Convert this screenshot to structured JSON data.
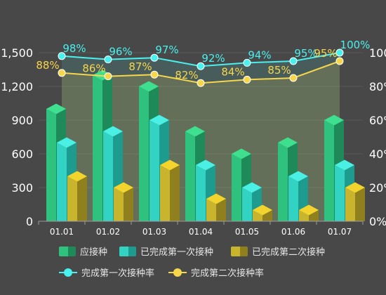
{
  "chart_data": {
    "type": "bar",
    "categories": [
      "01.01",
      "01.02",
      "01.03",
      "01.04",
      "01.05",
      "01.06",
      "01.07"
    ],
    "y_left": {
      "min": 0,
      "max": 1500,
      "ticks": [
        "0",
        "300",
        "600",
        "900",
        "1,200",
        "1,500"
      ]
    },
    "y_right": {
      "min": 0,
      "max": 100,
      "ticks": [
        "0%",
        "20%",
        "40%",
        "60%",
        "80%",
        "100%"
      ]
    },
    "grid": true,
    "legend_position": "bottom",
    "bar_series": [
      {
        "name": "应接种",
        "values": [
          1000,
          1300,
          1200,
          800,
          600,
          700,
          900
        ],
        "colors": {
          "front": "#2fc27f",
          "side": "#1f8a59",
          "top": "#3ee08f"
        }
      },
      {
        "name": "已完成第一次接种",
        "values": [
          700,
          800,
          900,
          500,
          300,
          400,
          500
        ],
        "colors": {
          "front": "#33d3c4",
          "side": "#1d9b8f",
          "top": "#4af0e4"
        }
      },
      {
        "name": "已完成第二次接种",
        "values": [
          400,
          300,
          500,
          200,
          100,
          100,
          300
        ],
        "colors": {
          "front": "#c9b42e",
          "side": "#8f7f1d",
          "top": "#f2d42c"
        }
      }
    ],
    "line_series": [
      {
        "name": "完成第一次接种率",
        "values": [
          98,
          96,
          97,
          92,
          94,
          95,
          100
        ],
        "labels": [
          "98%",
          "96%",
          "97%",
          "92%",
          "94%",
          "95%",
          "100%"
        ],
        "color": "#48f0ee",
        "fill": "rgba(72,240,238,0.12)"
      },
      {
        "name": "完成第二次接种率",
        "values": [
          88,
          86,
          87,
          82,
          84,
          85,
          95
        ],
        "labels": [
          "88%",
          "86%",
          "87%",
          "82%",
          "84%",
          "85%",
          "95%"
        ],
        "color": "#f6d64a",
        "fill": "rgba(246,214,74,0.16)"
      }
    ]
  }
}
